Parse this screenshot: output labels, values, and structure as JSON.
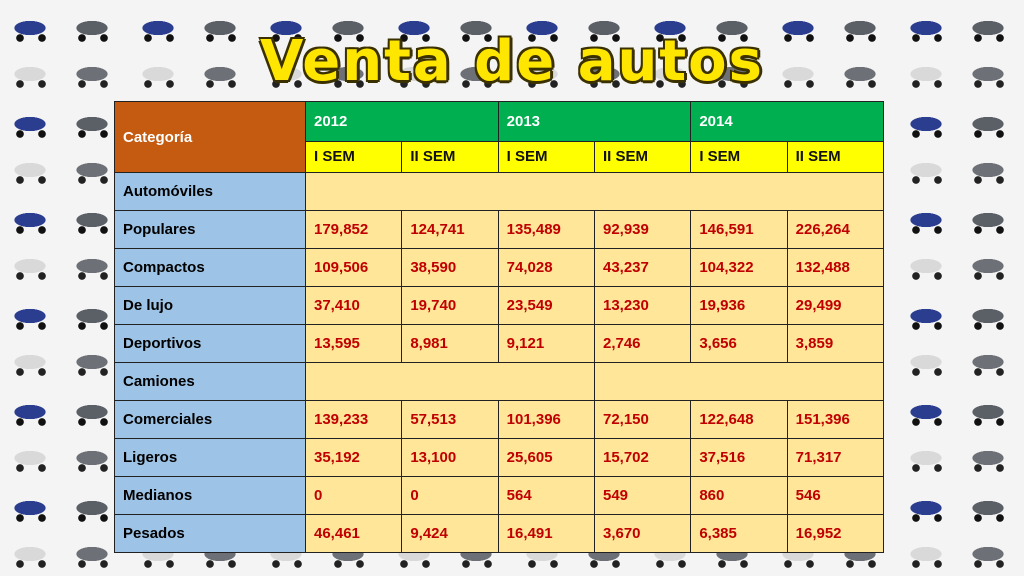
{
  "title": "Venta de autos",
  "table": {
    "category_header": "Categoría",
    "years": [
      "2012",
      "2013",
      "2014"
    ],
    "semesters": [
      "I SEM",
      "II SEM",
      "I SEM",
      "II SEM",
      "I SEM",
      "II SEM"
    ],
    "rows": [
      {
        "label": "Automóviles",
        "values": []
      },
      {
        "label": "Populares",
        "values": [
          "179,852",
          "124,741",
          "135,489",
          "92,939",
          "146,591",
          "226,264"
        ]
      },
      {
        "label": "Compactos",
        "values": [
          "109,506",
          "38,590",
          "74,028",
          "43,237",
          "104,322",
          "132,488"
        ]
      },
      {
        "label": "De lujo",
        "values": [
          "37,410",
          "19,740",
          "23,549",
          "13,230",
          "19,936",
          "29,499"
        ]
      },
      {
        "label": "Deportivos",
        "values": [
          "13,595",
          "8,981",
          "9,121",
          "2,746",
          "3,656",
          "3,859"
        ]
      },
      {
        "label": "Camiones",
        "values": []
      },
      {
        "label": "Comerciales",
        "values": [
          "139,233",
          "57,513",
          "101,396",
          "72,150",
          "122,648",
          "151,396"
        ]
      },
      {
        "label": "Ligeros",
        "values": [
          "35,192",
          "13,100",
          "25,605",
          "15,702",
          "37,516",
          "71,317"
        ]
      },
      {
        "label": "Medianos",
        "values": [
          "0",
          "0",
          "564",
          "549",
          "860",
          "546"
        ]
      },
      {
        "label": "Pesados",
        "values": [
          "46,461",
          "9,424",
          "16,491",
          "3,670",
          "6,385",
          "16,952"
        ]
      }
    ]
  },
  "colors": {
    "title": "#ffe600",
    "category_header": "#c55a11",
    "year_header": "#00b050",
    "semester_header": "#ffff00",
    "category_cells": "#9dc3e6",
    "value_cells": "#ffe699",
    "value_text": "#c00000"
  }
}
